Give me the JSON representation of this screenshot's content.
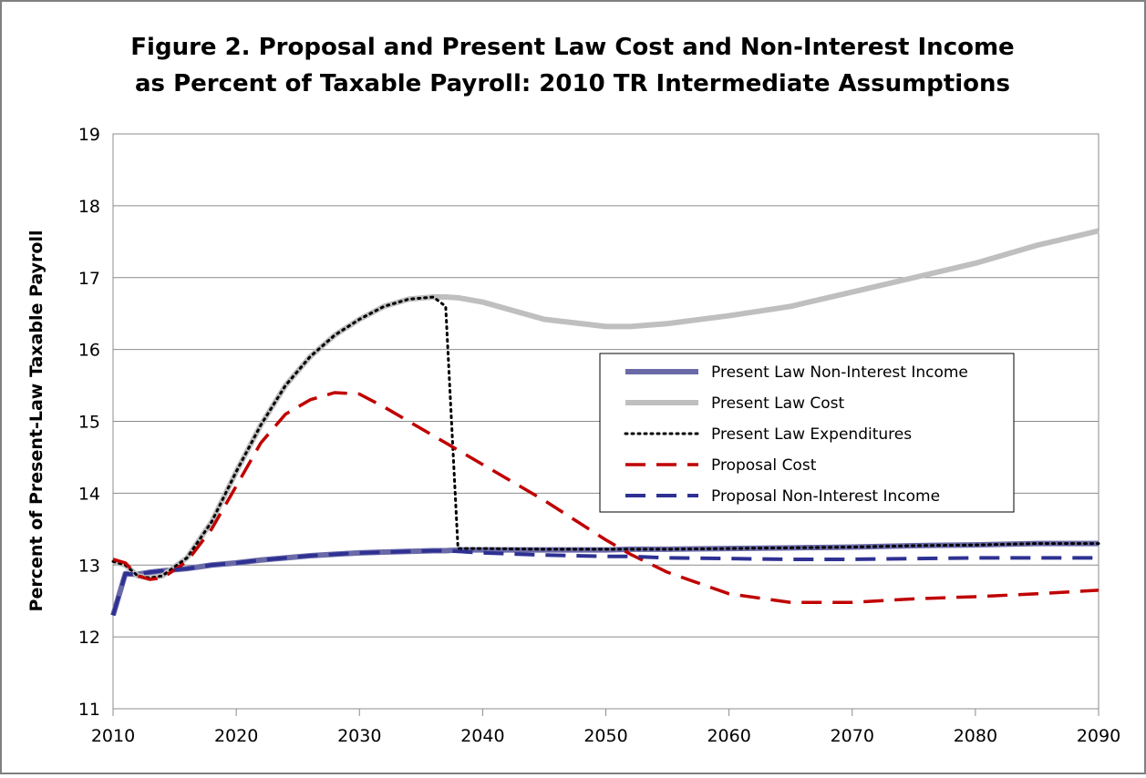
{
  "chart_data": {
    "type": "line",
    "title": [
      "Figure 2.  Proposal and Present Law Cost and Non-Interest Income",
      "as Percent of Taxable Payroll: 2010 TR Intermediate Assumptions"
    ],
    "y_label": "Percent of Present-Law Taxable Payroll",
    "x": [
      2010,
      2011,
      2012,
      2013,
      2014,
      2016,
      2018,
      2020,
      2022,
      2024,
      2026,
      2028,
      2030,
      2032,
      2034,
      2036,
      2037,
      2038,
      2040,
      2045,
      2050,
      2052,
      2055,
      2060,
      2065,
      2070,
      2075,
      2080,
      2085,
      2090
    ],
    "series": [
      {
        "name": "Present Law Non-Interest Income",
        "color": "#6b6aa8",
        "style": "solid",
        "width": 6,
        "values": [
          12.3,
          12.88,
          12.87,
          12.9,
          12.92,
          12.95,
          13.0,
          13.03,
          13.07,
          13.1,
          13.13,
          13.15,
          13.17,
          13.18,
          13.19,
          13.2,
          13.2,
          13.21,
          13.21,
          13.21,
          13.21,
          13.22,
          13.22,
          13.23,
          13.24,
          13.25,
          13.27,
          13.28,
          13.3,
          13.3
        ]
      },
      {
        "name": "Present Law Cost",
        "color": "#bfbfbf",
        "style": "solid",
        "width": 6,
        "values": [
          13.05,
          13.0,
          12.85,
          12.82,
          12.85,
          13.1,
          13.6,
          14.3,
          14.95,
          15.5,
          15.9,
          16.2,
          16.42,
          16.6,
          16.7,
          16.73,
          16.73,
          16.72,
          16.66,
          16.42,
          16.32,
          16.32,
          16.36,
          16.47,
          16.6,
          16.8,
          17.0,
          17.2,
          17.45,
          17.65
        ]
      },
      {
        "name": "Present Law Expenditures",
        "color": "#000000",
        "style": "dotted",
        "width": 3,
        "values": [
          13.05,
          13.0,
          12.85,
          12.82,
          12.85,
          13.1,
          13.6,
          14.3,
          14.95,
          15.5,
          15.9,
          16.2,
          16.42,
          16.6,
          16.7,
          16.73,
          16.6,
          13.23,
          13.23,
          13.22,
          13.22,
          13.22,
          13.22,
          13.23,
          13.24,
          13.25,
          13.27,
          13.28,
          13.3,
          13.3
        ]
      },
      {
        "name": "Proposal Cost",
        "color": "#c00000",
        "style": "dashed",
        "width": 3.5,
        "values": [
          13.08,
          13.03,
          12.85,
          12.8,
          12.82,
          13.05,
          13.5,
          14.1,
          14.7,
          15.1,
          15.3,
          15.4,
          15.38,
          15.2,
          15.0,
          14.8,
          14.7,
          14.6,
          14.4,
          13.9,
          13.35,
          13.15,
          12.9,
          12.6,
          12.48,
          12.48,
          12.53,
          12.56,
          12.6,
          12.65
        ]
      },
      {
        "name": "Proposal Non-Interest Income",
        "color": "#2e3192",
        "style": "dashed",
        "width": 4,
        "values": [
          12.3,
          12.88,
          12.87,
          12.9,
          12.92,
          12.95,
          13.0,
          13.03,
          13.07,
          13.1,
          13.13,
          13.15,
          13.17,
          13.18,
          13.19,
          13.2,
          13.2,
          13.19,
          13.17,
          13.14,
          13.12,
          13.12,
          13.1,
          13.09,
          13.08,
          13.08,
          13.09,
          13.1,
          13.1,
          13.1
        ]
      }
    ],
    "xlim": [
      2010,
      2090
    ],
    "xticks": [
      2010,
      2020,
      2030,
      2040,
      2050,
      2060,
      2070,
      2080,
      2090
    ],
    "ylim": [
      11,
      19
    ],
    "yticks": [
      11,
      12,
      13,
      14,
      15,
      16,
      17,
      18,
      19
    ],
    "grid": true
  }
}
